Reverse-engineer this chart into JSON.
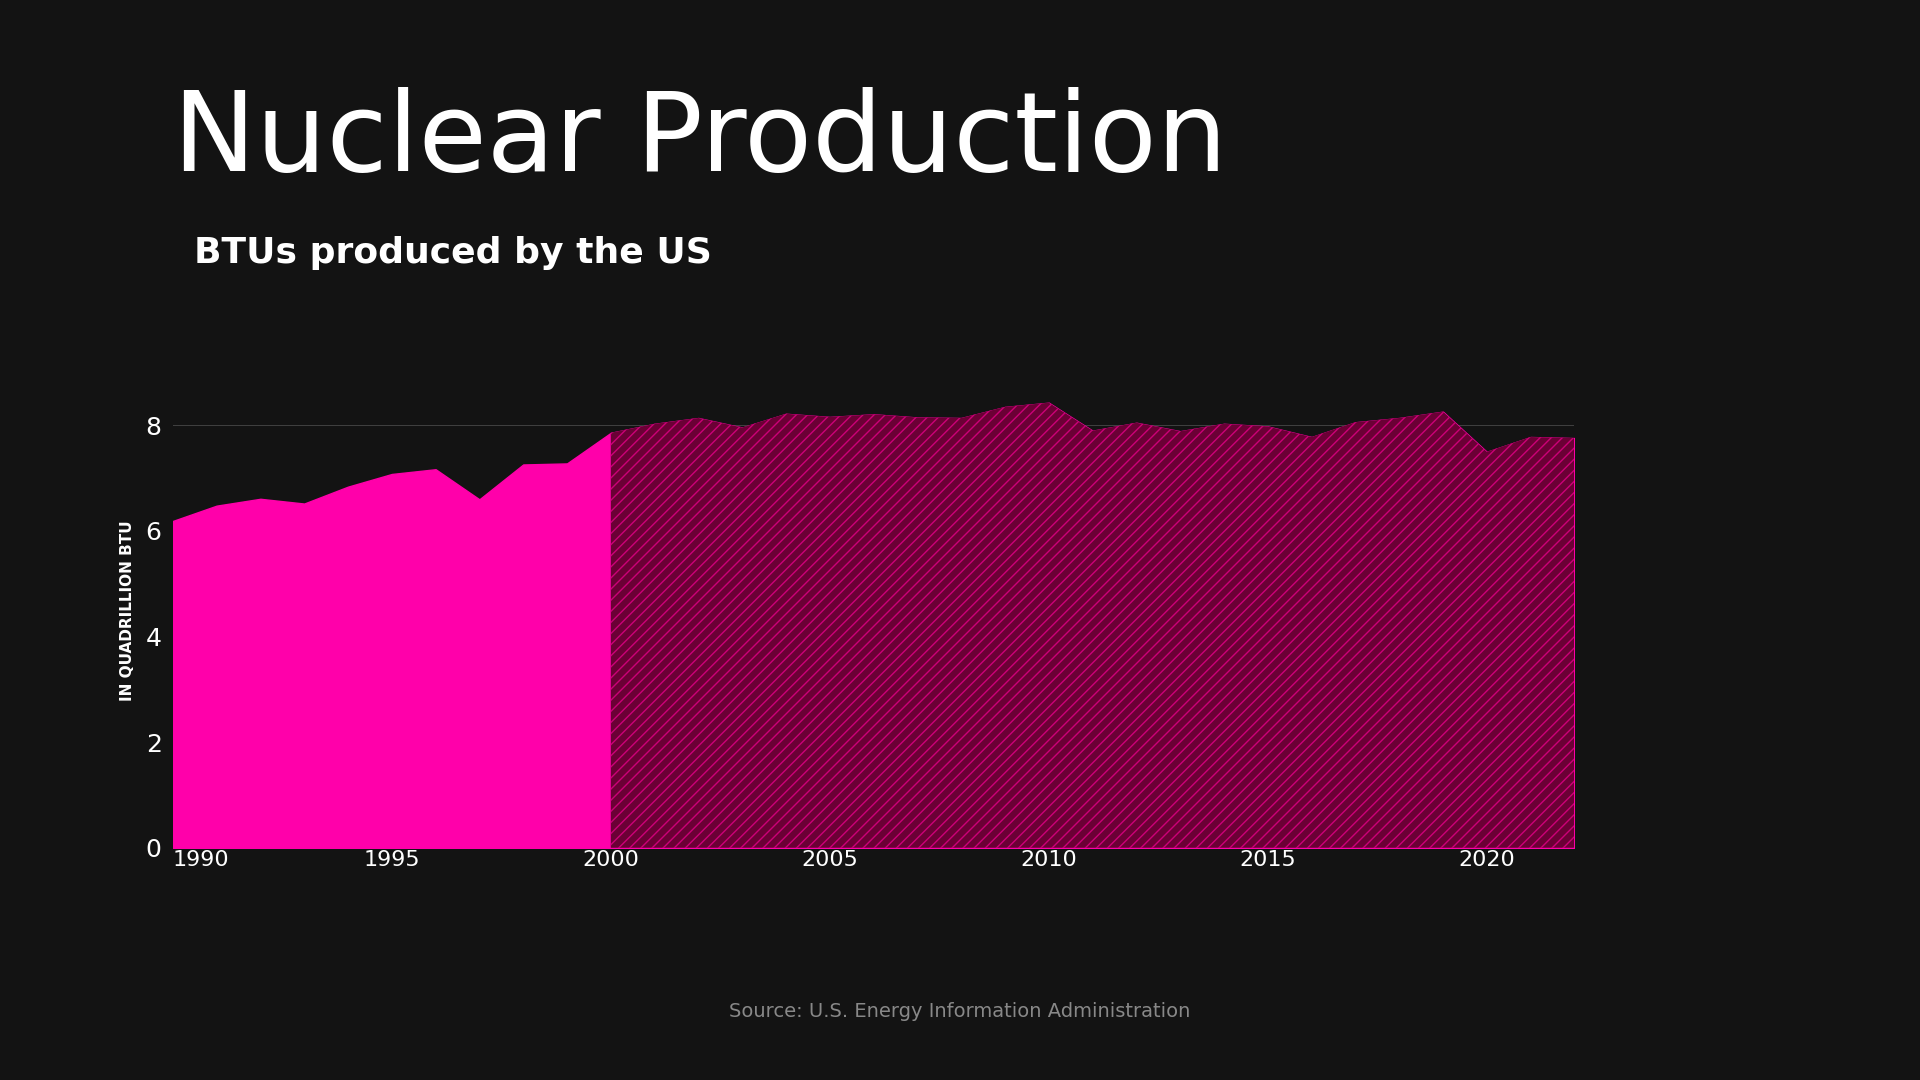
{
  "title": "Nuclear Production",
  "subtitle": "BTUs produced by the US",
  "ylabel": "IN QUADRILLION BTU",
  "source": "Source: U.S. Energy Information Administration",
  "background_color": "#131313",
  "chart_bg_color": "#131313",
  "area_color": "#FF00AA",
  "hatch_color": "#CC0077",
  "hatch_bg_color": "#6B0035",
  "subtitle_bg_color": "#FF00AA",
  "subtitle_text_color": "#FFFFFF",
  "title_color": "#FFFFFF",
  "axis_text_color": "#FFFFFF",
  "xaxis_bar_color": "#555555",
  "years": [
    1990,
    1991,
    1992,
    1993,
    1994,
    1995,
    1996,
    1997,
    1998,
    1999,
    2000,
    2001,
    2002,
    2003,
    2004,
    2005,
    2006,
    2007,
    2008,
    2009,
    2010,
    2011,
    2012,
    2013,
    2014,
    2015,
    2016,
    2017,
    2018,
    2019,
    2020,
    2021,
    2022
  ],
  "values": [
    6.19,
    6.48,
    6.61,
    6.52,
    6.84,
    7.08,
    7.17,
    6.6,
    7.26,
    7.28,
    7.86,
    8.03,
    8.14,
    7.96,
    8.22,
    8.16,
    8.21,
    8.15,
    8.14,
    8.35,
    8.43,
    7.9,
    8.05,
    7.89,
    8.03,
    7.98,
    7.78,
    8.06,
    8.14,
    8.26,
    7.5,
    7.78,
    7.76
  ],
  "ylim": [
    0,
    9
  ],
  "yticks": [
    0,
    2,
    4,
    6,
    8
  ],
  "xticks": [
    1990,
    1995,
    2000,
    2005,
    2010,
    2015,
    2020
  ],
  "hatch_start_year": 2000,
  "gridline_color": "#555555",
  "source_color": "#888888"
}
